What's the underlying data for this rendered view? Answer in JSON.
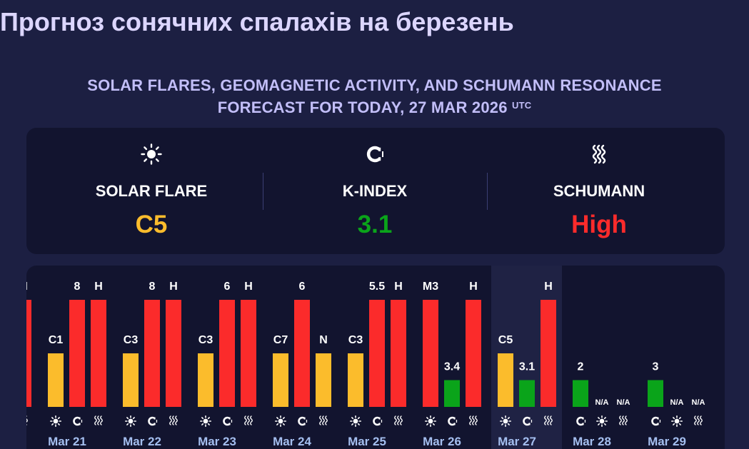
{
  "page_title": "Прогноз сонячних спалахів на березень",
  "subtitle_line1": "SOLAR FLARES, GEOMAGNETIC ACTIVITY, AND SCHUMANN RESONANCE",
  "subtitle_line2": "FORECAST FOR TODAY, 27 MAR 2026",
  "subtitle_sup": "UTC",
  "colors": {
    "flare": "#fbbc2c",
    "kindex_low": "#0aa41a",
    "high": "#fb2b2b",
    "background": "#1c1f42",
    "panel": "#12142f"
  },
  "summary": {
    "solar_flare": {
      "label": "SOLAR FLARE",
      "value": "C5",
      "icon": "sun-icon",
      "color": "#fbbc2c"
    },
    "k_index": {
      "label": "K-INDEX",
      "value": "3.1",
      "icon": "magnet-icon",
      "color": "#0aa41a"
    },
    "schumann": {
      "label": "SCHUMANN",
      "value": "High",
      "icon": "waves-icon",
      "color": "#fb2b2b"
    }
  },
  "chart_data": {
    "type": "bar",
    "today": "Mar 27",
    "days": [
      {
        "date": "",
        "partial": true,
        "bars": [
          {
            "kind": "schumann",
            "label": "H",
            "level": 1.0,
            "color": "#fb2b2b"
          }
        ]
      },
      {
        "date": "Mar 21",
        "bars": [
          {
            "kind": "flare",
            "label": "C1",
            "level": 0.5,
            "color": "#fbbc2c"
          },
          {
            "kind": "kindex",
            "label": "8",
            "level": 1.0,
            "color": "#fb2b2b"
          },
          {
            "kind": "schumann",
            "label": "H",
            "level": 1.0,
            "color": "#fb2b2b"
          }
        ]
      },
      {
        "date": "Mar 22",
        "bars": [
          {
            "kind": "flare",
            "label": "C3",
            "level": 0.5,
            "color": "#fbbc2c"
          },
          {
            "kind": "kindex",
            "label": "8",
            "level": 1.0,
            "color": "#fb2b2b"
          },
          {
            "kind": "schumann",
            "label": "H",
            "level": 1.0,
            "color": "#fb2b2b"
          }
        ]
      },
      {
        "date": "Mar 23",
        "bars": [
          {
            "kind": "flare",
            "label": "C3",
            "level": 0.5,
            "color": "#fbbc2c"
          },
          {
            "kind": "kindex",
            "label": "6",
            "level": 1.0,
            "color": "#fb2b2b"
          },
          {
            "kind": "schumann",
            "label": "H",
            "level": 1.0,
            "color": "#fb2b2b"
          }
        ]
      },
      {
        "date": "Mar 24",
        "bars": [
          {
            "kind": "flare",
            "label": "C7",
            "level": 0.5,
            "color": "#fbbc2c"
          },
          {
            "kind": "kindex",
            "label": "6",
            "level": 1.0,
            "color": "#fb2b2b"
          },
          {
            "kind": "schumann",
            "label": "N",
            "level": 0.5,
            "color": "#fbbc2c"
          }
        ]
      },
      {
        "date": "Mar 25",
        "bars": [
          {
            "kind": "flare",
            "label": "C3",
            "level": 0.5,
            "color": "#fbbc2c"
          },
          {
            "kind": "kindex",
            "label": "5.5",
            "level": 1.0,
            "color": "#fb2b2b"
          },
          {
            "kind": "schumann",
            "label": "H",
            "level": 1.0,
            "color": "#fb2b2b"
          }
        ]
      },
      {
        "date": "Mar 26",
        "bars": [
          {
            "kind": "flare",
            "label": "M3",
            "level": 1.0,
            "color": "#fb2b2b"
          },
          {
            "kind": "kindex",
            "label": "3.4",
            "level": 0.25,
            "color": "#0aa41a"
          },
          {
            "kind": "schumann",
            "label": "H",
            "level": 1.0,
            "color": "#fb2b2b"
          }
        ]
      },
      {
        "date": "Mar 27",
        "bars": [
          {
            "kind": "flare",
            "label": "C5",
            "level": 0.5,
            "color": "#fbbc2c"
          },
          {
            "kind": "kindex",
            "label": "3.1",
            "level": 0.25,
            "color": "#0aa41a"
          },
          {
            "kind": "schumann",
            "label": "H",
            "level": 1.0,
            "color": "#fb2b2b"
          }
        ]
      },
      {
        "date": "Mar 28",
        "bars": [
          {
            "kind": "kindex",
            "label": "2",
            "level": 0.25,
            "color": "#0aa41a"
          },
          {
            "kind": "flare",
            "label": "N/A",
            "level": 0,
            "color": "#fbbc2c"
          },
          {
            "kind": "schumann",
            "label": "N/A",
            "level": 0,
            "color": "#fb2b2b"
          }
        ]
      },
      {
        "date": "Mar 29",
        "bars": [
          {
            "kind": "kindex",
            "label": "3",
            "level": 0.25,
            "color": "#0aa41a"
          },
          {
            "kind": "flare",
            "label": "N/A",
            "level": 0,
            "color": "#fbbc2c"
          },
          {
            "kind": "schumann",
            "label": "N/A",
            "level": 0,
            "color": "#fb2b2b"
          }
        ]
      }
    ]
  }
}
